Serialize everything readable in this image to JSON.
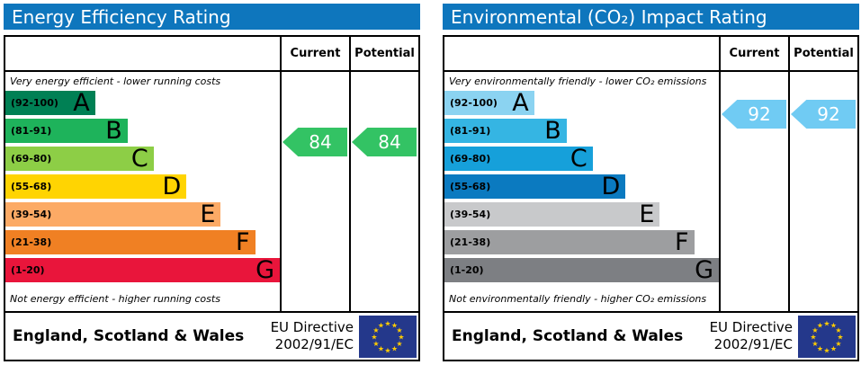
{
  "eu_flag": {
    "bg": "#24388b",
    "star": "#ffcc00"
  },
  "charts": [
    {
      "title": "Energy Efficiency Rating",
      "header_bg": "#0e76bd",
      "columns": {
        "current": "Current",
        "potential": "Potential"
      },
      "top_caption": "Very energy efficient - lower running costs",
      "bottom_caption": "Not energy efficient - higher running costs",
      "bands": [
        {
          "range": "(92-100)",
          "letter": "A",
          "color": "#008054",
          "width_pct": 32.7
        },
        {
          "range": "(81-91)",
          "letter": "B",
          "color": "#1eb35b",
          "width_pct": 44.5
        },
        {
          "range": "(69-80)",
          "letter": "C",
          "color": "#8dce46",
          "width_pct": 54
        },
        {
          "range": "(55-68)",
          "letter": "D",
          "color": "#ffd402",
          "width_pct": 66
        },
        {
          "range": "(39-54)",
          "letter": "E",
          "color": "#fcaa65",
          "width_pct": 78.5
        },
        {
          "range": "(21-38)",
          "letter": "F",
          "color": "#f08023",
          "width_pct": 91
        },
        {
          "range": "(1-20)",
          "letter": "G",
          "color": "#e9153b",
          "width_pct": 100
        }
      ],
      "current": {
        "value": "84",
        "band_index": 1,
        "color": "#33c364"
      },
      "potential": {
        "value": "84",
        "band_index": 1,
        "color": "#33c364"
      },
      "footer": {
        "region": "England, Scotland & Wales",
        "directive_line1": "EU Directive",
        "directive_line2": "2002/91/EC"
      }
    },
    {
      "title": "Environmental (CO₂) Impact Rating",
      "header_bg": "#0e76bd",
      "columns": {
        "current": "Current",
        "potential": "Potential"
      },
      "top_caption": "Very environmentally friendly - lower CO₂ emissions",
      "bottom_caption": "Not environmentally friendly - higher CO₂ emissions",
      "bands": [
        {
          "range": "(92-100)",
          "letter": "A",
          "color": "#8bd3f1",
          "width_pct": 32.7
        },
        {
          "range": "(81-91)",
          "letter": "B",
          "color": "#35b5e3",
          "width_pct": 44.5
        },
        {
          "range": "(69-80)",
          "letter": "C",
          "color": "#16a0da",
          "width_pct": 54
        },
        {
          "range": "(55-68)",
          "letter": "D",
          "color": "#0b7ac0",
          "width_pct": 66
        },
        {
          "range": "(39-54)",
          "letter": "E",
          "color": "#c8c9cb",
          "width_pct": 78.5
        },
        {
          "range": "(21-38)",
          "letter": "F",
          "color": "#9d9ea0",
          "width_pct": 91
        },
        {
          "range": "(1-20)",
          "letter": "G",
          "color": "#7d7f83",
          "width_pct": 100
        }
      ],
      "current": {
        "value": "92",
        "band_index": 0,
        "color": "#70cbf3"
      },
      "potential": {
        "value": "92",
        "band_index": 0,
        "color": "#70cbf3"
      },
      "footer": {
        "region": "England, Scotland & Wales",
        "directive_line1": "EU Directive",
        "directive_line2": "2002/91/EC"
      }
    }
  ],
  "chart_data": [
    {
      "type": "bar",
      "title": "Energy Efficiency Rating",
      "categories": [
        "A (92-100)",
        "B (81-91)",
        "C (69-80)",
        "D (55-68)",
        "E (39-54)",
        "F (21-38)",
        "G (1-20)"
      ],
      "series": [
        {
          "name": "Current",
          "value": 84,
          "band": "B"
        },
        {
          "name": "Potential",
          "value": 84,
          "band": "B"
        }
      ],
      "scale": [
        1,
        100
      ],
      "top_note": "Very energy efficient - lower running costs",
      "bottom_note": "Not energy efficient - higher running costs"
    },
    {
      "type": "bar",
      "title": "Environmental (CO₂) Impact Rating",
      "categories": [
        "A (92-100)",
        "B (81-91)",
        "C (69-80)",
        "D (55-68)",
        "E (39-54)",
        "F (21-38)",
        "G (1-20)"
      ],
      "series": [
        {
          "name": "Current",
          "value": 92,
          "band": "A"
        },
        {
          "name": "Potential",
          "value": 92,
          "band": "A"
        }
      ],
      "scale": [
        1,
        100
      ],
      "top_note": "Very environmentally friendly - lower CO₂ emissions",
      "bottom_note": "Not environmentally friendly - higher CO₂ emissions"
    }
  ]
}
